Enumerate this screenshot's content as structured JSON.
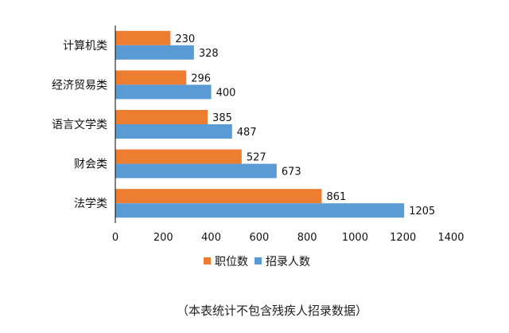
{
  "chart_data": {
    "type": "bar",
    "orientation": "horizontal",
    "categories": [
      "计算机类",
      "经济贸易类",
      "语言文学类",
      "财会类",
      "法学类"
    ],
    "series": [
      {
        "name": "职位数",
        "color": "#ED7D31",
        "values": [
          230,
          296,
          385,
          527,
          861
        ]
      },
      {
        "name": "招录人数",
        "color": "#5B9BD5",
        "values": [
          328,
          400,
          487,
          673,
          1205
        ]
      }
    ],
    "xlim": [
      0,
      1400
    ],
    "xticks": [
      0,
      200,
      400,
      600,
      800,
      1000,
      1200,
      1400
    ],
    "grid": false,
    "legend_position": "bottom",
    "note": "（本表统计不包含残疾人招录数据）"
  }
}
